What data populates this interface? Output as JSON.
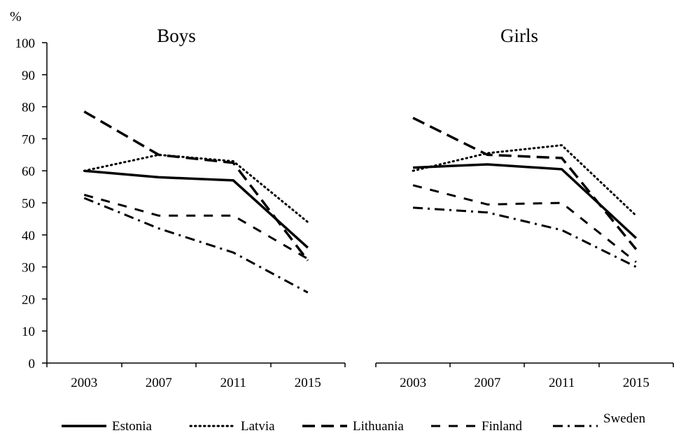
{
  "chart_data": {
    "type": "line",
    "y_unit_label": "%",
    "ylim": [
      0,
      100
    ],
    "yticks": [
      0,
      10,
      20,
      30,
      40,
      50,
      60,
      70,
      80,
      90,
      100
    ],
    "categories": [
      "2003",
      "2007",
      "2011",
      "2015"
    ],
    "grid": false,
    "legend_position": "bottom",
    "panels": [
      {
        "title": "Boys",
        "series": [
          {
            "name": "Estonia",
            "values": [
              60,
              58,
              57,
              36
            ]
          },
          {
            "name": "Latvia",
            "values": [
              60,
              65,
              63,
              44
            ]
          },
          {
            "name": "Lithuania",
            "values": [
              78.5,
              65,
              62.5,
              32
            ]
          },
          {
            "name": "Finland",
            "values": [
              52.5,
              46,
              46,
              32.5
            ]
          },
          {
            "name": "Sweden",
            "values": [
              51.5,
              42,
              34.5,
              22
            ]
          }
        ]
      },
      {
        "title": "Girls",
        "series": [
          {
            "name": "Estonia",
            "values": [
              61,
              62,
              60.5,
              39
            ]
          },
          {
            "name": "Latvia",
            "values": [
              60,
              65.5,
              68,
              46
            ]
          },
          {
            "name": "Lithuania",
            "values": [
              76.5,
              65,
              64,
              35.5
            ]
          },
          {
            "name": "Finland",
            "values": [
              55.5,
              49.5,
              50,
              31.5
            ]
          },
          {
            "name": "Sweden",
            "values": [
              48.5,
              47,
              41.5,
              30
            ]
          }
        ]
      }
    ],
    "legend": [
      "Estonia",
      "Latvia",
      "Lithuania",
      "Finland",
      "Sweden"
    ],
    "series_styles": [
      {
        "name": "Estonia",
        "style": "solid",
        "color": "#000000"
      },
      {
        "name": "Latvia",
        "style": "dotted",
        "color": "#000000"
      },
      {
        "name": "Lithuania",
        "style": "long-dash",
        "color": "#000000"
      },
      {
        "name": "Finland",
        "style": "dash",
        "color": "#000000"
      },
      {
        "name": "Sweden",
        "style": "dash-dot",
        "color": "#000000"
      }
    ]
  }
}
